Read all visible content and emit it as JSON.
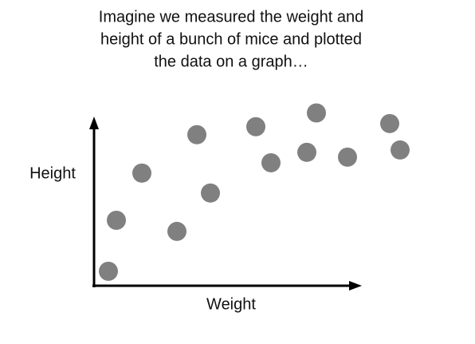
{
  "chart_data": {
    "type": "scatter",
    "title": [
      "Imagine we measured the weight and",
      "height of a bunch of mice and plotted",
      "the data on a graph…"
    ],
    "xlabel": "Weight",
    "ylabel": "Height",
    "x": [
      5.4,
      8.4,
      18,
      31.2,
      38.7,
      43.8,
      60.9,
      66.6,
      80.1,
      83.7,
      95.4,
      111.3,
      115.2
    ],
    "values": [
      8.7,
      39.4,
      67.8,
      32.7,
      90.9,
      55.8,
      95.7,
      74,
      80.3,
      104,
      77.4,
      97.6,
      81.7
    ],
    "color": "#808080",
    "xlim": [
      0,
      120
    ],
    "ylim": [
      0,
      110
    ]
  }
}
